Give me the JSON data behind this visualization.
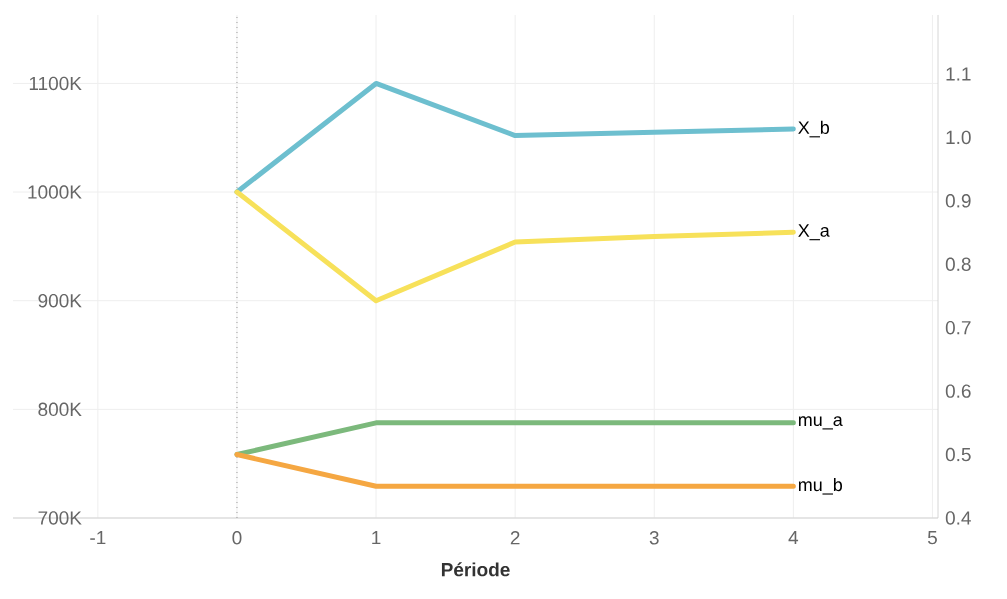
{
  "chart_data": {
    "type": "line",
    "xlabel": "Période",
    "x": [
      0,
      1,
      2,
      3,
      4
    ],
    "series": [
      {
        "name": "X_b",
        "color": "#6dbfcf",
        "values": [
          1000000,
          1100000,
          1052000,
          1055000,
          1058000
        ]
      },
      {
        "name": "X_a",
        "color": "#f7e15a",
        "values": [
          1000000,
          900000,
          954000,
          959000,
          963000
        ]
      },
      {
        "name": "mu_a",
        "color": "#7cb97c",
        "axis": "y2",
        "values": [
          0.5,
          0.55,
          0.55,
          0.55,
          0.55
        ]
      },
      {
        "name": "mu_b",
        "color": "#f5a742",
        "axis": "y2",
        "values": [
          0.5,
          0.45,
          0.45,
          0.45,
          0.45
        ]
      }
    ],
    "xlim": [
      -1.61,
      5.04
    ],
    "xticks": [
      -1,
      0,
      1,
      2,
      3,
      4,
      5
    ],
    "ylim": [
      700000,
      1163000
    ],
    "yticks": [
      {
        "value": 700000,
        "label": "700K"
      },
      {
        "value": 800000,
        "label": "800K"
      },
      {
        "value": 900000,
        "label": "900K"
      },
      {
        "value": 1000000,
        "label": "1000K"
      },
      {
        "value": 1100000,
        "label": "1100K"
      }
    ],
    "y2lim": [
      0.4,
      1.193
    ],
    "y2ticks": [
      0.4,
      0.5,
      0.6,
      0.7,
      0.8,
      0.9,
      {
        "value": 1.0,
        "label": "1.0"
      },
      1.1
    ],
    "ref_lines": [
      {
        "axis": "x",
        "value": 0,
        "color": "#999999",
        "line_style": "dotted"
      }
    ],
    "grid": true,
    "legend": false,
    "marker": "none"
  }
}
